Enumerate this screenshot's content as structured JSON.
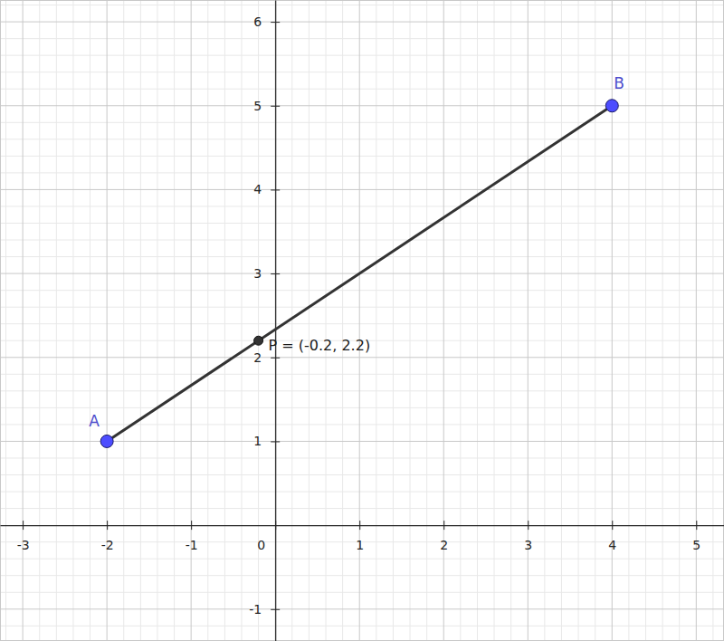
{
  "chart_data": {
    "type": "line",
    "x": [
      -2,
      4
    ],
    "values": [
      1,
      5
    ],
    "color": "#333333",
    "points": [
      {
        "label": "A",
        "x": -2,
        "y": 1,
        "color": "#4d4dff"
      },
      {
        "label": "B",
        "x": 4,
        "y": 5,
        "color": "#4d4dff"
      },
      {
        "label": "P = (-0.2, 2.2)",
        "x": -0.2,
        "y": 2.2,
        "color": "#333333"
      }
    ],
    "xlim": [
      -3.27,
      5.33
    ],
    "ylim": [
      -1.38,
      6.26
    ],
    "xticks": [
      -3,
      -2,
      -1,
      0,
      1,
      2,
      3,
      4,
      5
    ],
    "yticks": [
      -1,
      1,
      2,
      3,
      4,
      5,
      6
    ],
    "grid": true
  }
}
